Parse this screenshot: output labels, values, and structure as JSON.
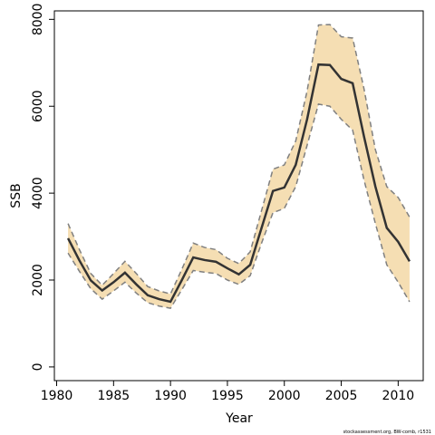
{
  "chart_data": {
    "type": "line",
    "xlabel": "Year",
    "ylabel": "SSB",
    "footnote": "stockassessment.org, BW-comb, r1531",
    "x": [
      1981,
      1982,
      1983,
      1984,
      1985,
      1986,
      1987,
      1988,
      1989,
      1990,
      1991,
      1992,
      1993,
      1994,
      1995,
      1996,
      1997,
      1998,
      1999,
      2000,
      2001,
      2002,
      2003,
      2004,
      2005,
      2006,
      2007,
      2008,
      2009,
      2010,
      2011
    ],
    "values": [
      2960,
      2450,
      1990,
      1760,
      1950,
      2170,
      1900,
      1650,
      1560,
      1500,
      2000,
      2520,
      2460,
      2420,
      2270,
      2130,
      2350,
      3200,
      4050,
      4130,
      4650,
      5700,
      6960,
      6950,
      6630,
      6530,
      5300,
      4150,
      3200,
      2880,
      2430
    ],
    "upper": [
      3300,
      2700,
      2150,
      1880,
      2150,
      2430,
      2150,
      1850,
      1750,
      1680,
      2250,
      2850,
      2750,
      2700,
      2500,
      2380,
      2650,
      3600,
      4550,
      4650,
      5200,
      6350,
      7870,
      7880,
      7600,
      7570,
      6400,
      5000,
      4150,
      3900,
      3450
    ],
    "lower": [
      2620,
      2200,
      1800,
      1560,
      1750,
      1950,
      1700,
      1480,
      1400,
      1350,
      1780,
      2220,
      2180,
      2150,
      2000,
      1900,
      2100,
      2850,
      3550,
      3650,
      4150,
      5100,
      6050,
      6000,
      5700,
      5450,
      4300,
      3300,
      2350,
      1950,
      1500
    ],
    "color": "#333333",
    "band_color": "#f5deb3",
    "band_line_color": "#808080",
    "xlim": [
      1979.8,
      2012.2
    ],
    "ylim": [
      -315,
      8195
    ],
    "xticks": [
      1980,
      1985,
      1990,
      1995,
      2000,
      2005,
      2010
    ],
    "yticks": [
      0,
      2000,
      4000,
      6000,
      8000
    ]
  }
}
